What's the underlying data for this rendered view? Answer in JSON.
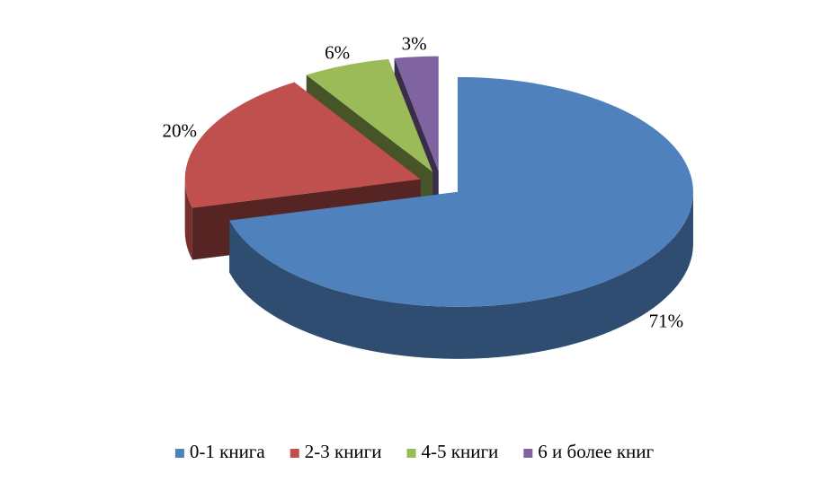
{
  "chart_data": {
    "type": "pie3d",
    "categories": [
      "0-1 книга",
      "2-3 книги",
      "4-5 книги",
      "6 и более книг"
    ],
    "values": [
      71,
      20,
      6,
      3
    ],
    "value_labels": [
      "71%",
      "20%",
      "6%",
      "3%"
    ],
    "colors": [
      "#4f81bd",
      "#c0504d",
      "#9bbb59",
      "#8064a2"
    ],
    "legend": "bottom"
  }
}
